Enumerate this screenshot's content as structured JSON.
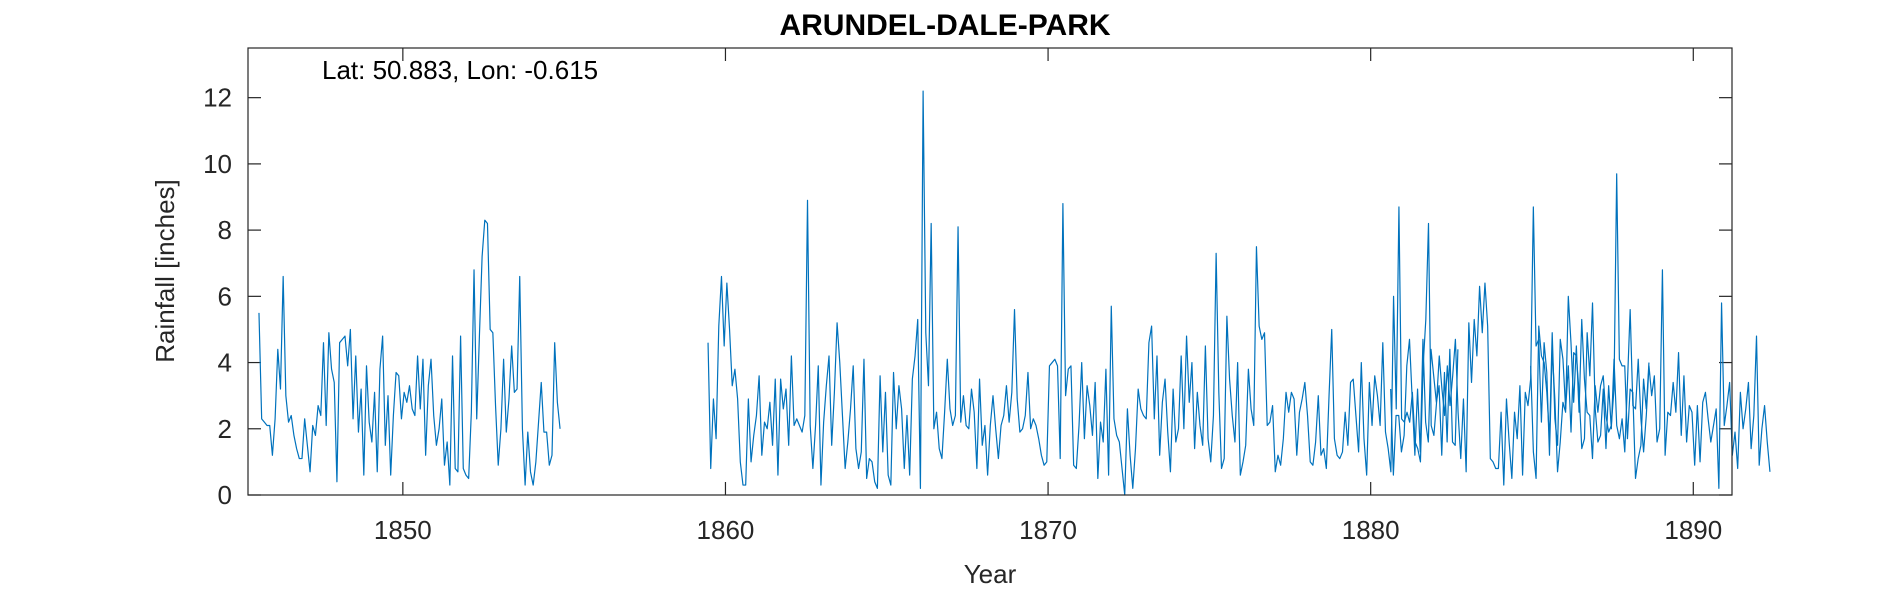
{
  "chart_data": {
    "type": "line",
    "title": "ARUNDEL-DALE-PARK",
    "xlabel": "Year",
    "ylabel": "Rainfall [inches]",
    "annotation": "Lat: 50.883, Lon: -0.615",
    "xlim": [
      1845.2,
      1891.2
    ],
    "ylim": [
      0,
      13.5
    ],
    "xticks": [
      1850,
      1860,
      1870,
      1880,
      1890
    ],
    "yticks": [
      0,
      2,
      4,
      6,
      8,
      10,
      12
    ],
    "grid": false,
    "line_color": "#0072BD",
    "series": [
      {
        "segments": [
          {
            "x_start": 1845.54,
            "x_step": 0.08333,
            "values": [
              5.5,
              2.3,
              2.2,
              2.1,
              2.1,
              1.2,
              2.3,
              4.4,
              3.2,
              6.6,
              3.0,
              2.2,
              2.4,
              1.8,
              1.4,
              1.1,
              1.1,
              2.3,
              1.5,
              0.7,
              2.1,
              1.8,
              2.7,
              2.4,
              4.6,
              2.1,
              4.9,
              3.8,
              3.4,
              0.4,
              4.6,
              4.7,
              4.8,
              3.9,
              5.0,
              2.3,
              4.2,
              1.9,
              3.2,
              0.6,
              3.9,
              2.2,
              1.6,
              3.1,
              0.7,
              3.8,
              4.8,
              1.5,
              3.0,
              0.6,
              2.4,
              3.7,
              3.6,
              2.3,
              3.1,
              2.8,
              3.3,
              2.6,
              2.4,
              4.2,
              2.6,
              4.1,
              1.2,
              3.3,
              4.1,
              2.4,
              1.5,
              2.0,
              2.9,
              0.9,
              1.6,
              0.3,
              4.2,
              0.8,
              0.7,
              4.8,
              0.8,
              0.6,
              0.5,
              2.5,
              6.8,
              2.3,
              4.8,
              7.2,
              8.3,
              8.2,
              5.0,
              4.9,
              2.7,
              0.9,
              2.0,
              4.1,
              1.9,
              2.9,
              4.5,
              3.1,
              3.2,
              6.6,
              2.0,
              0.3,
              1.9,
              0.7,
              0.3,
              1.0,
              2.2,
              3.4,
              1.9,
              1.9,
              0.9,
              1.2,
              4.6,
              2.8,
              2.0
            ]
          },
          {
            "x_start": 1859.46,
            "x_step": 0.08333,
            "values": [
              4.6,
              0.8,
              2.9,
              1.7,
              5.1,
              6.6,
              4.5,
              6.4,
              5.0,
              3.3,
              3.8,
              2.9,
              1.0,
              0.3,
              0.3,
              2.9,
              1.0,
              1.8,
              2.4,
              3.6,
              1.2,
              2.2,
              2.0,
              2.8,
              1.5,
              3.5,
              0.6,
              3.5,
              2.6,
              3.2,
              1.5,
              4.2,
              2.1,
              2.3,
              2.1,
              1.9,
              2.4,
              8.9,
              2.1,
              0.8,
              2.1,
              3.9,
              0.3,
              2.2,
              3.3,
              4.2,
              1.5,
              3.1,
              5.2,
              4.0,
              2.4,
              0.8,
              1.6,
              2.6,
              3.9,
              1.4,
              0.8,
              1.3,
              4.1,
              0.5,
              1.1,
              1.0,
              0.4,
              0.2,
              3.6,
              1.3,
              3.1,
              0.6,
              0.3,
              3.7,
              2.0,
              3.3,
              2.6,
              0.8,
              2.4,
              0.6,
              3.5,
              4.2,
              5.3,
              0.2,
              12.2,
              4.9,
              3.3,
              8.2,
              2.0,
              2.5,
              1.4,
              1.1,
              2.5,
              4.1,
              2.6,
              2.1,
              2.4,
              8.1,
              2.2,
              3.0,
              2.1,
              2.0,
              3.2,
              2.5,
              0.8,
              3.5,
              1.5,
              2.1,
              0.6,
              2.1,
              3.0,
              2.0,
              1.1,
              2.1,
              2.4,
              3.3,
              2.2,
              3.1,
              5.6,
              2.9,
              1.9,
              2.0,
              2.4,
              3.7,
              2.0,
              2.3,
              2.1,
              1.7,
              1.2,
              0.9,
              1.0,
              3.9,
              4.0,
              4.1,
              3.9,
              1.1,
              8.8,
              3.0,
              3.8,
              3.9,
              0.9,
              0.8,
              2.1,
              4.0,
              1.7,
              3.3,
              2.7,
              1.8,
              3.4,
              0.5,
              2.2,
              1.6,
              3.8,
              0.6,
              5.7,
              2.3,
              1.8,
              1.6,
              0.8,
              0.0,
              2.6,
              1.2,
              0.2,
              1.4,
              3.2,
              2.6,
              2.4,
              2.3,
              4.6,
              5.1,
              2.3,
              4.2,
              1.2,
              2.8,
              3.5,
              1.9,
              0.7,
              3.2,
              1.6,
              2.0,
              4.2,
              2.0,
              4.8,
              2.8,
              4.0,
              1.4,
              3.1,
              2.1,
              1.5,
              4.5,
              1.7,
              1.0,
              2.4,
              7.3,
              3.1,
              0.8,
              1.1,
              5.4,
              3.5,
              2.4,
              1.6,
              4.0,
              0.6,
              1.0,
              1.5,
              3.8,
              2.6,
              2.1,
              7.5,
              5.1,
              4.7,
              4.9,
              2.1,
              2.2,
              2.7,
              0.7,
              1.2,
              0.9,
              1.7,
              3.1,
              2.5,
              3.1,
              2.9,
              1.2,
              2.5,
              2.9,
              3.4,
              2.4,
              1.0,
              0.9,
              1.6,
              3.0,
              1.2,
              1.4,
              0.8,
              3.0,
              5.0,
              1.7,
              1.2,
              1.1,
              1.3,
              2.5,
              1.5,
              3.4,
              3.5,
              2.4,
              1.3,
              4.0,
              1.7,
              0.6,
              3.4,
              2.1,
              3.6,
              3.0,
              2.1,
              4.6,
              1.9,
              1.4,
              0.7,
              6.0,
              2.6,
              8.7,
              2.3,
              2.2,
              2.5,
              2.2,
              3.1,
              1.6,
              1.4,
              1.0,
              3.9,
              5.3,
              8.2,
              2.1,
              1.8,
              2.8,
              4.2,
              3.2,
              2.4,
              3.9,
              2.7,
              3.6,
              4.7,
              2.5,
              1.1,
              2.9,
              0.7,
              5.2,
              3.4,
              5.3,
              4.2,
              6.3,
              4.9,
              6.4,
              5.1,
              1.1,
              1.0,
              0.8,
              0.8,
              2.5,
              0.3,
              2.9,
              1.6,
              0.5,
              2.5,
              1.7,
              3.3,
              0.6,
              3.1,
              2.7,
              3.5,
              8.7,
              4.5,
              4.7,
              2.2,
              4.6,
              3.7,
              1.2,
              4.4,
              2.9,
              0.7,
              1.6,
              2.8,
              2.5,
              6.0,
              4.6,
              2.8,
              4.5,
              2.5,
              5.3,
              3.5,
              2.5,
              2.4,
              1.1,
              3.3,
              2.5,
              3.3,
              3.6,
              2.4,
              1.9,
              2.1,
              3.2,
              9.7,
              4.1,
              3.9,
              3.9,
              1.7,
              3.2,
              3.1,
              0.5,
              1.1,
              1.5,
              3.5,
              2.6,
              4.0
            ]
          },
          {
            "x_start": 1880.62,
            "x_step": 0.08333,
            "values": [
              3.2,
              0.6,
              2.4,
              2.4,
              1.3,
              1.8,
              3.9,
              4.7,
              2.9,
              1.2,
              3.2,
              1.3,
              4.7,
              2.2,
              1.6,
              4.4,
              3.6,
              2.8,
              3.3,
              1.2,
              3.7,
              1.6,
              4.4,
              1.6,
              1.5,
              4.4
            ]
          },
          {
            "x_start": 1884.96,
            "x_step": 0.08333,
            "values": [
              3.9,
              1.3,
              0.5,
              5.1,
              4.2,
              4.0,
              3.1,
              1.7,
              4.9,
              2.3,
              1.5,
              4.7,
              4.1,
              2.6,
              3.9,
              1.9,
              4.3,
              4.2,
              3.1,
              1.4,
              1.7,
              4.9,
              3.6,
              5.8,
              2.6,
              1.6,
              1.8,
              3.2,
              1.4,
              3.3,
              2.0,
              4.1,
              2.1,
              1.7,
              2.3,
              1.3,
              3.4,
              5.6,
              2.7,
              2.6,
              4.1,
              2.3,
              1.3,
              2.4,
              3.9,
              3.0,
              3.6,
              1.6,
              2.0,
              6.8,
              1.2,
              2.5,
              2.4,
              3.4,
              2.5,
              4.3,
              1.8,
              3.6,
              1.6,
              2.7,
              2.5,
              0.9,
              2.7,
              1.0,
              2.8,
              3.1,
              2.3,
              1.6,
              2.1,
              2.6,
              0.2,
              5.8,
              2.1,
              2.7,
              3.4,
              1.2,
              1.9,
              0.8,
              3.1,
              2.0,
              2.6,
              3.4,
              1.4,
              2.4,
              4.8,
              0.9,
              2.0,
              2.7,
              1.6,
              0.7
            ]
          }
        ]
      }
    ]
  }
}
